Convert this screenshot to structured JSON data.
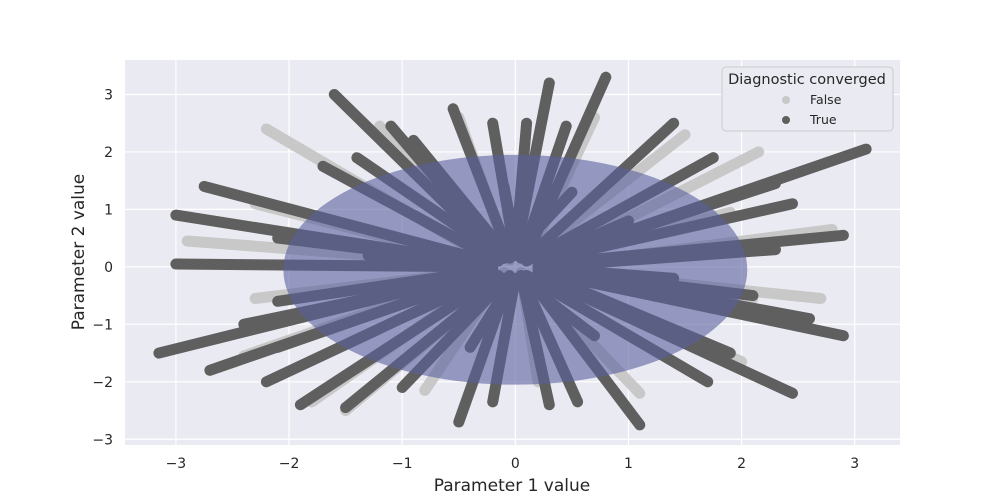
{
  "chart_data": {
    "type": "scatter",
    "title": "",
    "xlabel": "Parameter 1 value",
    "ylabel": "Parameter 2 value",
    "xlim": [
      -3.45,
      3.4
    ],
    "ylim": [
      -3.1,
      3.6
    ],
    "xticks": [
      -3,
      -2,
      -1,
      0,
      1,
      2,
      3
    ],
    "yticks": [
      -3,
      -2,
      -1,
      0,
      1,
      2,
      3
    ],
    "tick_labels_x": [
      "−3",
      "−2",
      "−1",
      "0",
      "1",
      "2",
      "3"
    ],
    "tick_labels_y": [
      "−3",
      "−2",
      "−1",
      "0",
      "1",
      "2",
      "3"
    ],
    "grid": true,
    "background": "#eaeaf2",
    "legend": {
      "title": "Diagnostic converged",
      "placement": "top-right",
      "entries": [
        {
          "label": "False",
          "color": "#c8c8c8"
        },
        {
          "label": "True",
          "color": "#5f5f5f"
        }
      ]
    },
    "series": [
      {
        "name": "False",
        "color": "#c8c8c8",
        "trajectories": [
          [
            [
              -2.2,
              2.4
            ],
            [
              -0.25,
              0.15
            ]
          ],
          [
            [
              -1.2,
              2.45
            ],
            [
              -0.15,
              0.12
            ]
          ],
          [
            [
              -0.5,
              2.6
            ],
            [
              -0.05,
              0.12
            ]
          ],
          [
            [
              0.7,
              2.6
            ],
            [
              0.1,
              0.1
            ]
          ],
          [
            [
              2.15,
              2.0
            ],
            [
              0.25,
              0.1
            ]
          ],
          [
            [
              2.8,
              0.65
            ],
            [
              0.25,
              0.0
            ]
          ],
          [
            [
              2.7,
              -0.55
            ],
            [
              0.25,
              -0.05
            ]
          ],
          [
            [
              2.1,
              -0.55
            ],
            [
              0.2,
              -0.05
            ]
          ],
          [
            [
              2.0,
              -1.65
            ],
            [
              0.2,
              -0.1
            ]
          ],
          [
            [
              1.1,
              -2.2
            ],
            [
              0.1,
              -0.15
            ]
          ],
          [
            [
              0.2,
              -2.0
            ],
            [
              0.05,
              -0.1
            ]
          ],
          [
            [
              -0.8,
              -2.15
            ],
            [
              -0.1,
              -0.1
            ]
          ],
          [
            [
              -1.8,
              -2.35
            ],
            [
              -0.2,
              -0.15
            ]
          ],
          [
            [
              -2.4,
              -1.55
            ],
            [
              -0.2,
              -0.05
            ]
          ],
          [
            [
              -2.3,
              -0.55
            ],
            [
              -0.2,
              -0.05
            ]
          ],
          [
            [
              -2.9,
              0.45
            ],
            [
              -0.25,
              0.05
            ]
          ],
          [
            [
              -2.3,
              1.1
            ],
            [
              -0.2,
              0.05
            ]
          ],
          [
            [
              1.9,
              0.95
            ],
            [
              0.2,
              0.1
            ]
          ],
          [
            [
              -1.5,
              -2.5
            ],
            [
              -0.1,
              -0.2
            ]
          ],
          [
            [
              1.5,
              2.3
            ],
            [
              0.1,
              0.15
            ]
          ]
        ]
      },
      {
        "name": "True",
        "color": "#5f5f5f",
        "trajectories": [
          [
            [
              -3.15,
              -1.5
            ],
            [
              -0.3,
              -0.1
            ]
          ],
          [
            [
              -3.0,
              0.9
            ],
            [
              -0.25,
              0.05
            ]
          ],
          [
            [
              -3.0,
              0.05
            ],
            [
              -0.2,
              0.0
            ]
          ],
          [
            [
              -2.75,
              1.4
            ],
            [
              -0.25,
              0.1
            ]
          ],
          [
            [
              -2.4,
              -1.0
            ],
            [
              -0.2,
              -0.1
            ]
          ],
          [
            [
              -2.2,
              -2.0
            ],
            [
              -0.2,
              -0.15
            ]
          ],
          [
            [
              -1.9,
              -2.4
            ],
            [
              -0.15,
              -0.15
            ]
          ],
          [
            [
              -1.5,
              -2.45
            ],
            [
              -0.1,
              -0.2
            ]
          ],
          [
            [
              -1.6,
              3.0
            ],
            [
              -0.15,
              0.2
            ]
          ],
          [
            [
              -1.1,
              2.45
            ],
            [
              -0.1,
              0.15
            ]
          ],
          [
            [
              -0.9,
              2.2
            ],
            [
              -0.05,
              0.15
            ]
          ],
          [
            [
              -0.55,
              2.75
            ],
            [
              -0.05,
              0.2
            ]
          ],
          [
            [
              -0.2,
              2.5
            ],
            [
              0.0,
              0.2
            ]
          ],
          [
            [
              0.1,
              2.5
            ],
            [
              0.0,
              0.2
            ]
          ],
          [
            [
              0.3,
              3.2
            ],
            [
              0.0,
              0.2
            ]
          ],
          [
            [
              0.45,
              2.45
            ],
            [
              0.05,
              0.15
            ]
          ],
          [
            [
              0.8,
              3.3
            ],
            [
              0.1,
              0.2
            ]
          ],
          [
            [
              1.4,
              2.5
            ],
            [
              0.1,
              0.15
            ]
          ],
          [
            [
              1.75,
              1.9
            ],
            [
              0.1,
              0.1
            ]
          ],
          [
            [
              2.3,
              1.45
            ],
            [
              0.2,
              0.1
            ]
          ],
          [
            [
              2.45,
              1.1
            ],
            [
              0.2,
              0.1
            ]
          ],
          [
            [
              3.1,
              2.05
            ],
            [
              0.3,
              0.15
            ]
          ],
          [
            [
              2.9,
              0.55
            ],
            [
              0.25,
              0.05
            ]
          ],
          [
            [
              2.9,
              -1.2
            ],
            [
              0.25,
              -0.1
            ]
          ],
          [
            [
              2.6,
              -0.9
            ],
            [
              0.25,
              -0.05
            ]
          ],
          [
            [
              2.45,
              -2.2
            ],
            [
              0.2,
              -0.15
            ]
          ],
          [
            [
              1.1,
              -2.75
            ],
            [
              0.1,
              -0.15
            ]
          ],
          [
            [
              0.55,
              -2.35
            ],
            [
              0.05,
              -0.15
            ]
          ],
          [
            [
              0.3,
              -2.4
            ],
            [
              0.05,
              -0.15
            ]
          ],
          [
            [
              -0.5,
              -2.7
            ],
            [
              -0.05,
              -0.2
            ]
          ],
          [
            [
              -0.2,
              -2.35
            ],
            [
              0.0,
              -0.2
            ]
          ],
          [
            [
              -1.0,
              -2.1
            ],
            [
              -0.05,
              -0.15
            ]
          ],
          [
            [
              -2.1,
              -1.4
            ],
            [
              -0.2,
              -0.1
            ]
          ],
          [
            [
              -2.1,
              -0.6
            ],
            [
              -0.2,
              -0.05
            ]
          ],
          [
            [
              -2.1,
              0.5
            ],
            [
              -0.2,
              0.05
            ]
          ],
          [
            [
              -1.7,
              1.75
            ],
            [
              -0.15,
              0.1
            ]
          ],
          [
            [
              2.1,
              -0.5
            ],
            [
              0.2,
              -0.05
            ]
          ],
          [
            [
              2.3,
              0.3
            ],
            [
              0.2,
              0.0
            ]
          ],
          [
            [
              1.9,
              -1.5
            ],
            [
              0.2,
              -0.1
            ]
          ],
          [
            [
              -1.4,
              1.9
            ],
            [
              -0.1,
              0.15
            ]
          ],
          [
            [
              1.7,
              -2.0
            ],
            [
              0.1,
              -0.15
            ]
          ],
          [
            [
              -2.7,
              -1.8
            ],
            [
              -0.2,
              -0.1
            ]
          ],
          [
            [
              -0.1,
              1.4
            ],
            [
              0.0,
              0.35
            ]
          ],
          [
            [
              0.5,
              1.3
            ],
            [
              0.05,
              0.35
            ]
          ],
          [
            [
              -0.4,
              -1.4
            ],
            [
              -0.05,
              -0.3
            ]
          ],
          [
            [
              0.7,
              -1.2
            ],
            [
              0.1,
              -0.3
            ]
          ],
          [
            [
              -1.3,
              0.2
            ],
            [
              -0.4,
              0.05
            ]
          ],
          [
            [
              1.4,
              -0.2
            ],
            [
              0.4,
              -0.05
            ]
          ],
          [
            [
              -0.9,
              0.9
            ],
            [
              -0.3,
              0.25
            ]
          ],
          [
            [
              1.0,
              0.8
            ],
            [
              0.3,
              0.2
            ]
          ],
          [
            [
              -0.9,
              -0.8
            ],
            [
              -0.3,
              -0.25
            ]
          ],
          [
            [
              0.9,
              -0.7
            ],
            [
              0.3,
              -0.2
            ]
          ]
        ]
      }
    ],
    "overlay": {
      "shape": "ellipse",
      "center": [
        0.0,
        -0.05
      ],
      "radii": [
        2.05,
        2.0
      ],
      "color": "#5a5f9c",
      "opacity": 0.6
    }
  }
}
